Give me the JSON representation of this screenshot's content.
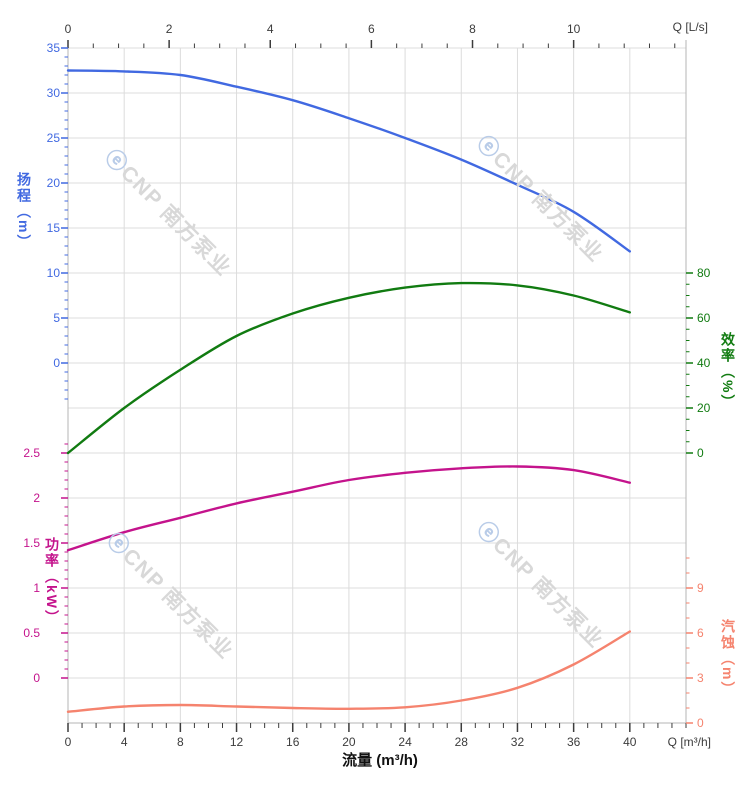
{
  "watermark": {
    "logo_glyph": "ⓔ",
    "text": "CNP 南方泵业"
  },
  "chart_data": {
    "type": "line",
    "title": "",
    "x_bottom": {
      "axis_label": "流量 (m³/h)",
      "unit_label": "Q [m³/h]",
      "unit": "m³/h",
      "major_ticks": [
        0,
        4,
        8,
        12,
        16,
        20,
        24,
        28,
        32,
        36,
        40
      ],
      "minor_step": 1,
      "max": 44
    },
    "x_top": {
      "unit_label": "Q [L/s]",
      "unit": "L/s",
      "major_ticks": [
        0,
        2,
        4,
        6,
        8,
        10
      ],
      "minor_step": 0.5,
      "max": 12.2,
      "m3h_per_unit": 3.6
    },
    "y_axes": [
      {
        "id": "head",
        "name": "扬程",
        "axis_label": "扬程（m）",
        "unit": "m",
        "side": "left",
        "color": "#4169E1",
        "major_ticks": [
          35,
          30,
          25,
          20,
          15,
          10,
          5,
          0
        ],
        "minor_step": 1,
        "top_value": 35,
        "bottom_value": 0
      },
      {
        "id": "efficiency",
        "name": "效率",
        "axis_label": "效率（%）",
        "unit": "%",
        "side": "right",
        "color": "#117B11",
        "major_ticks": [
          80,
          60,
          40,
          20,
          0
        ],
        "minor_step": 5,
        "top_value": 80,
        "bottom_value": 0
      },
      {
        "id": "power",
        "name": "功率",
        "axis_label": "功率（kW）",
        "unit": "kW",
        "side": "left",
        "color": "#C4138C",
        "major_ticks": [
          2.5,
          2,
          1.5,
          1,
          0.5,
          0
        ],
        "minor_step": 0.1,
        "top_value": 2.5,
        "bottom_value": 0
      },
      {
        "id": "npsh",
        "name": "汽蚀",
        "axis_label": "汽蚀（m）",
        "unit": "m",
        "side": "right",
        "color": "#F5836E",
        "major_ticks": [
          9,
          6,
          3,
          0
        ],
        "minor_step": 1,
        "top_value": 9,
        "bottom_value": 0
      }
    ],
    "series": [
      {
        "name": "扬程",
        "axis": "head",
        "color": "#4169E1",
        "x": [
          0,
          4,
          8,
          12,
          16,
          20,
          24,
          28,
          32,
          36,
          40
        ],
        "values": [
          32.5,
          32.4,
          32.0,
          30.7,
          29.2,
          27.2,
          25.0,
          22.6,
          19.8,
          16.8,
          12.4
        ]
      },
      {
        "name": "效率",
        "axis": "efficiency",
        "color": "#117B11",
        "x": [
          0,
          4,
          8,
          12,
          16,
          20,
          24,
          28,
          32,
          36,
          40
        ],
        "values": [
          0,
          20,
          37,
          52,
          62,
          69,
          73.5,
          75.5,
          74.5,
          70,
          62.5
        ]
      },
      {
        "name": "功率",
        "axis": "power",
        "color": "#C4138C",
        "x": [
          0,
          4,
          8,
          12,
          16,
          20,
          24,
          28,
          32,
          36,
          40
        ],
        "values": [
          1.42,
          1.62,
          1.78,
          1.94,
          2.07,
          2.2,
          2.28,
          2.33,
          2.35,
          2.31,
          2.17
        ]
      },
      {
        "name": "汽蚀",
        "axis": "npsh",
        "color": "#F5836E",
        "x": [
          0,
          4,
          8,
          12,
          16,
          20,
          24,
          28,
          32,
          36,
          40
        ],
        "values": [
          0.75,
          1.1,
          1.2,
          1.1,
          1.0,
          0.95,
          1.05,
          1.5,
          2.35,
          3.9,
          6.1
        ]
      }
    ],
    "layout_hints": {
      "grid": true,
      "legend": "none"
    }
  }
}
